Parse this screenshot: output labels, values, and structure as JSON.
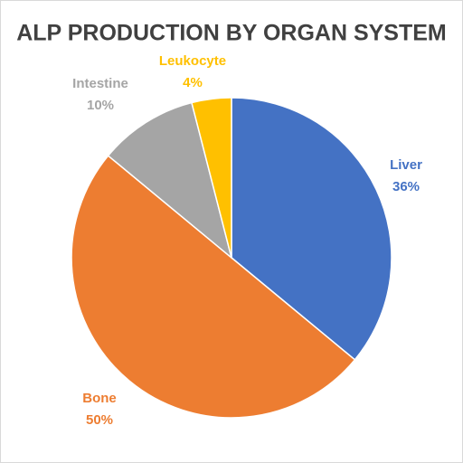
{
  "chart_data": {
    "type": "pie",
    "title": "ALP PRODUCTION BY ORGAN SYSTEM",
    "categories": [
      "Liver",
      "Bone",
      "Intestine",
      "Leukocyte"
    ],
    "values": [
      36,
      50,
      10,
      4
    ],
    "value_labels": [
      "36%",
      "50%",
      "10%",
      "4%"
    ],
    "colors": [
      "#4472c4",
      "#ed7d31",
      "#a5a5a5",
      "#ffc000"
    ]
  }
}
